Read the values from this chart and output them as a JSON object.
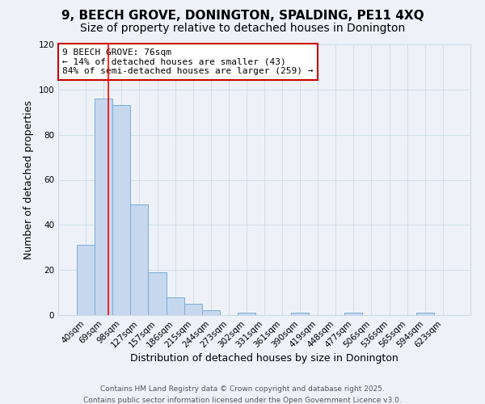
{
  "title": "9, BEECH GROVE, DONINGTON, SPALDING, PE11 4XQ",
  "subtitle": "Size of property relative to detached houses in Donington",
  "xlabel": "Distribution of detached houses by size in Donington",
  "ylabel": "Number of detached properties",
  "bin_labels": [
    "40sqm",
    "69sqm",
    "98sqm",
    "127sqm",
    "157sqm",
    "186sqm",
    "215sqm",
    "244sqm",
    "273sqm",
    "302sqm",
    "331sqm",
    "361sqm",
    "390sqm",
    "419sqm",
    "448sqm",
    "477sqm",
    "506sqm",
    "536sqm",
    "565sqm",
    "594sqm",
    "623sqm"
  ],
  "bar_values": [
    31,
    96,
    93,
    49,
    19,
    8,
    5,
    2,
    0,
    1,
    0,
    0,
    1,
    0,
    0,
    1,
    0,
    0,
    0,
    1,
    0
  ],
  "bar_color": "#c5d8ee",
  "bar_edgecolor": "#7aadd4",
  "red_line_x": 1.25,
  "annotation_box_text": "9 BEECH GROVE: 76sqm\n← 14% of detached houses are smaller (43)\n84% of semi-detached houses are larger (259) →",
  "annotation_box_color": "#ffffff",
  "annotation_box_edgecolor": "#cc0000",
  "ylim": [
    0,
    120
  ],
  "yticks": [
    0,
    20,
    40,
    60,
    80,
    100,
    120
  ],
  "grid_color": "#ccdbe8",
  "background_color": "#eef2f8",
  "footer_line1": "Contains HM Land Registry data © Crown copyright and database right 2025.",
  "footer_line2": "Contains public sector information licensed under the Open Government Licence v3.0.",
  "title_fontsize": 11,
  "subtitle_fontsize": 10,
  "xlabel_fontsize": 9,
  "ylabel_fontsize": 9,
  "tick_fontsize": 7.5,
  "annotation_fontsize": 8,
  "footer_fontsize": 6.5
}
